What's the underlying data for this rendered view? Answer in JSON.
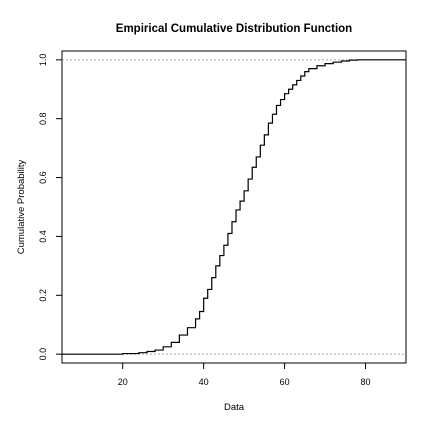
{
  "chart_data": {
    "type": "line",
    "title": "Empirical Cumulative Distribution Function",
    "xlabel": "Data",
    "ylabel": "Cumulative Probability",
    "xlim": [
      5,
      90
    ],
    "ylim": [
      -0.03,
      1.03
    ],
    "xticks": [
      20,
      40,
      60,
      80
    ],
    "yticks": [
      0.0,
      0.2,
      0.4,
      0.6,
      0.8,
      1.0
    ],
    "reference_lines_y": [
      0,
      1
    ],
    "grid": false,
    "legend": "none",
    "series": [
      {
        "style": "step",
        "color": "#000000",
        "x": [
          5,
          15,
          20,
          24,
          26,
          28,
          30,
          32,
          34,
          36,
          38,
          39,
          40,
          41,
          42,
          43,
          44,
          45,
          46,
          47,
          48,
          49,
          50,
          51,
          52,
          53,
          54,
          55,
          56,
          57,
          58,
          59,
          60,
          61,
          62,
          63,
          64,
          65,
          66,
          68,
          70,
          72,
          74,
          76,
          78,
          90
        ],
        "y": [
          0.0,
          0.0,
          0.002,
          0.005,
          0.009,
          0.014,
          0.025,
          0.04,
          0.065,
          0.09,
          0.12,
          0.145,
          0.19,
          0.22,
          0.26,
          0.3,
          0.335,
          0.37,
          0.41,
          0.45,
          0.49,
          0.52,
          0.555,
          0.595,
          0.635,
          0.67,
          0.71,
          0.745,
          0.785,
          0.815,
          0.845,
          0.865,
          0.885,
          0.9,
          0.915,
          0.93,
          0.945,
          0.96,
          0.97,
          0.98,
          0.987,
          0.992,
          0.996,
          0.999,
          1.0,
          1.0
        ]
      }
    ]
  }
}
